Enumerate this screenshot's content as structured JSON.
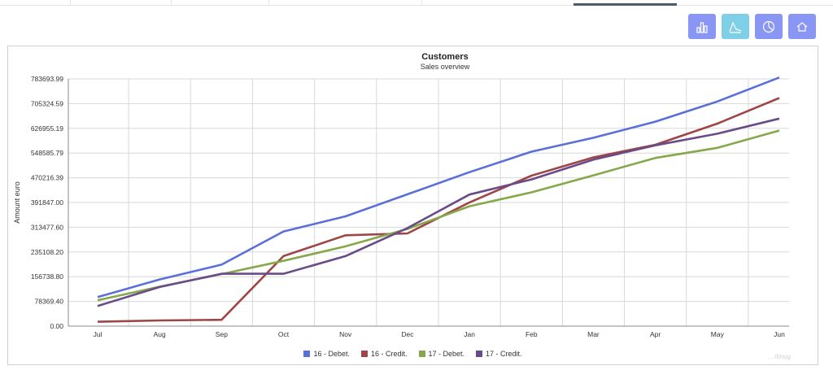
{
  "toolbar": {
    "buttons": [
      {
        "icon": "bar-chart-icon",
        "color": "#8a96f3"
      },
      {
        "icon": "line-chart-icon",
        "color": "#7fd0e6"
      },
      {
        "icon": "pie-chart-icon",
        "color": "#8a96f3"
      },
      {
        "icon": "home-icon",
        "color": "#8a96f3"
      }
    ]
  },
  "chart_data": {
    "type": "line",
    "title": "Customers",
    "subtitle": "Sales overview",
    "ylabel": "Amount euro",
    "xlabel": "",
    "categories": [
      "Jul",
      "Aug",
      "Sep",
      "Oct",
      "Nov",
      "Dec",
      "Jan",
      "Feb",
      "Mar",
      "Apr",
      "May",
      "Jun"
    ],
    "yticks": [
      "0.00",
      "78369.40",
      "156738.80",
      "235108.20",
      "313477.60",
      "391847.00",
      "470216.39",
      "548585.79",
      "626955.19",
      "705324.59",
      "783693.99"
    ],
    "ylim": [
      0,
      783693.99
    ],
    "grid": true,
    "legend": "bottom",
    "series": [
      {
        "name": "16 - Debet.",
        "color": "#5b6fd8",
        "values": [
          92000,
          148000,
          195000,
          300000,
          348000,
          418000,
          488000,
          553000,
          597000,
          648000,
          712000,
          788000
        ]
      },
      {
        "name": "16 - Credit.",
        "color": "#9e4545",
        "values": [
          14000,
          18000,
          20000,
          222000,
          288000,
          294000,
          392000,
          477000,
          535000,
          575000,
          642000,
          723000
        ]
      },
      {
        "name": "17 - Debet.",
        "color": "#86a84a",
        "values": [
          82000,
          125000,
          165000,
          207000,
          253000,
          308000,
          380000,
          424000,
          478000,
          533000,
          565000,
          620000
        ]
      },
      {
        "name": "17 - Credit.",
        "color": "#6a4b8a",
        "values": [
          64000,
          124000,
          166000,
          166000,
          222000,
          311000,
          417000,
          465000,
          528000,
          573000,
          610000,
          658000
        ]
      }
    ]
  }
}
